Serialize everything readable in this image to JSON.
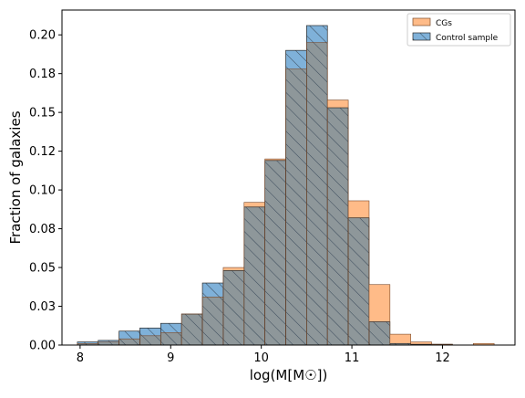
{
  "colors": {
    "cgs_fill": "#ffbb88",
    "cgs_edge": "#7a4a2a",
    "control_fill": "#7fb1d9",
    "overlap_fill": "#8e979a",
    "bar_edge": "#2b2b2b",
    "hatch": "#3a4a5a"
  },
  "chart_data": {
    "type": "bar",
    "subtype": "overlaid-histogram",
    "xlabel": "log(M[M☉])",
    "ylabel": "Fraction of galaxies",
    "xlim": [
      7.8,
      12.8
    ],
    "ylim": [
      0.0,
      0.216
    ],
    "bin_edges": [
      7.97,
      8.2,
      8.43,
      8.66,
      8.89,
      9.12,
      9.35,
      9.58,
      9.81,
      10.04,
      10.27,
      10.5,
      10.73,
      10.96,
      11.19,
      11.42,
      11.65,
      11.88,
      12.11,
      12.34,
      12.57
    ],
    "xticks": [
      8,
      9,
      10,
      11,
      12
    ],
    "xtick_labels": [
      "8",
      "9",
      "10",
      "11",
      "12"
    ],
    "yticks": [
      0.0,
      0.025,
      0.05,
      0.075,
      0.1,
      0.125,
      0.15,
      0.175,
      0.2
    ],
    "ytick_labels": [
      "0.00",
      "0.03",
      "0.05",
      "0.08",
      "0.10",
      "0.12",
      "0.15",
      "0.18",
      "0.20"
    ],
    "legend_position": "top-right",
    "series": [
      {
        "name": "CGs",
        "values": [
          0.001,
          0.002,
          0.004,
          0.006,
          0.008,
          0.02,
          0.031,
          0.05,
          0.092,
          0.12,
          0.178,
          0.195,
          0.158,
          0.093,
          0.039,
          0.007,
          0.002,
          0.0005,
          0.0,
          0.001
        ]
      },
      {
        "name": "Control sample",
        "values": [
          0.002,
          0.003,
          0.009,
          0.011,
          0.014,
          0.02,
          0.04,
          0.048,
          0.089,
          0.119,
          0.19,
          0.206,
          0.153,
          0.082,
          0.015,
          0.001,
          0.0005,
          0.0005,
          0.0,
          0.0
        ]
      }
    ]
  }
}
